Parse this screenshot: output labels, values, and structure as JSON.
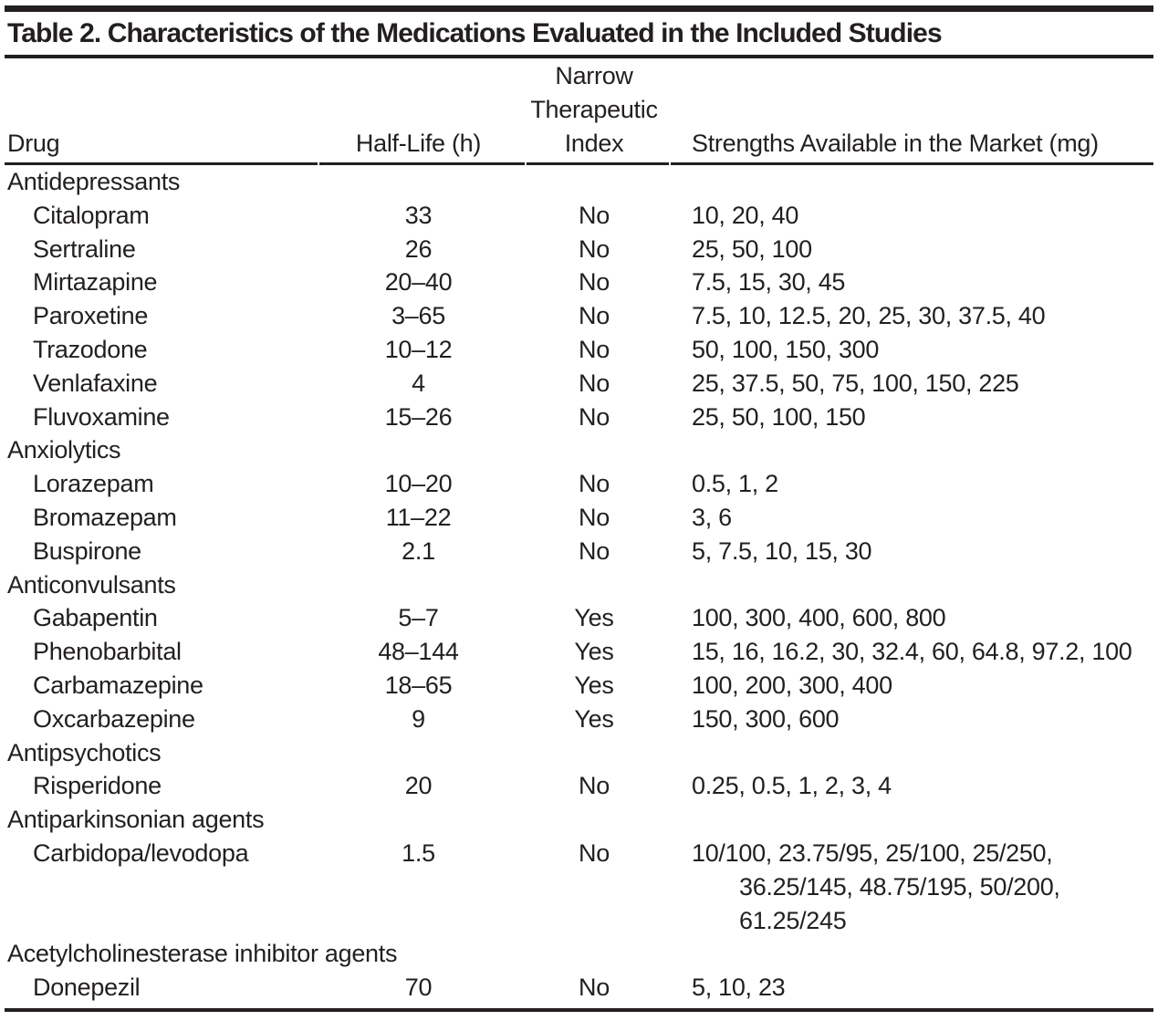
{
  "title": "Table 2. Characteristics of the Medications Evaluated in the Included Studies",
  "colors": {
    "ink": "#231f20",
    "rule": "#231f20"
  },
  "header": {
    "drug": "Drug",
    "half_life": "Half-Life (h)",
    "nti": [
      "Narrow",
      "Therapeutic",
      "Index"
    ],
    "strengths": "Strengths Available in the Market (mg)"
  },
  "rows": [
    {
      "type": "section",
      "label": "Antidepressants"
    },
    {
      "type": "drug",
      "name": "Citalopram",
      "half_life": "33",
      "nti": "No",
      "strengths": [
        "10, 20, 40"
      ]
    },
    {
      "type": "drug",
      "name": "Sertraline",
      "half_life": "26",
      "nti": "No",
      "strengths": [
        "25, 50, 100"
      ]
    },
    {
      "type": "drug",
      "name": "Mirtazapine",
      "half_life": "20–40",
      "nti": "No",
      "strengths": [
        "7.5, 15, 30, 45"
      ]
    },
    {
      "type": "drug",
      "name": "Paroxetine",
      "half_life": "3–65",
      "nti": "No",
      "strengths": [
        "7.5, 10, 12.5, 20, 25, 30, 37.5, 40"
      ]
    },
    {
      "type": "drug",
      "name": "Trazodone",
      "half_life": "10–12",
      "nti": "No",
      "strengths": [
        "50, 100, 150, 300"
      ]
    },
    {
      "type": "drug",
      "name": "Venlafaxine",
      "half_life": "4",
      "nti": "No",
      "strengths": [
        "25, 37.5, 50, 75, 100, 150, 225"
      ]
    },
    {
      "type": "drug",
      "name": "Fluvoxamine",
      "half_life": "15–26",
      "nti": "No",
      "strengths": [
        "25, 50, 100, 150"
      ]
    },
    {
      "type": "section",
      "label": "Anxiolytics"
    },
    {
      "type": "drug",
      "name": "Lorazepam",
      "half_life": "10–20",
      "nti": "No",
      "strengths": [
        "0.5, 1, 2"
      ]
    },
    {
      "type": "drug",
      "name": "Bromazepam",
      "half_life": "11–22",
      "nti": "No",
      "strengths": [
        "3, 6"
      ]
    },
    {
      "type": "drug",
      "name": "Buspirone",
      "half_life": "2.1",
      "nti": "No",
      "strengths": [
        "5, 7.5, 10, 15, 30"
      ]
    },
    {
      "type": "section",
      "label": "Anticonvulsants"
    },
    {
      "type": "drug",
      "name": "Gabapentin",
      "half_life": "5–7",
      "nti": "Yes",
      "strengths": [
        "100, 300, 400, 600, 800"
      ]
    },
    {
      "type": "drug",
      "name": "Phenobarbital",
      "half_life": "48–144",
      "nti": "Yes",
      "strengths": [
        "15, 16, 16.2, 30, 32.4, 60, 64.8, 97.2, 100"
      ]
    },
    {
      "type": "drug",
      "name": "Carbamazepine",
      "half_life": "18–65",
      "nti": "Yes",
      "strengths": [
        "100, 200, 300, 400"
      ]
    },
    {
      "type": "drug",
      "name": "Oxcarbazepine",
      "half_life": "9",
      "nti": "Yes",
      "strengths": [
        "150, 300, 600"
      ]
    },
    {
      "type": "section",
      "label": "Antipsychotics"
    },
    {
      "type": "drug",
      "name": "Risperidone",
      "half_life": "20",
      "nti": "No",
      "strengths": [
        "0.25, 0.5, 1, 2, 3, 4"
      ]
    },
    {
      "type": "section",
      "label": "Antiparkinsonian agents"
    },
    {
      "type": "drug",
      "name": "Carbidopa/levodopa",
      "half_life": "1.5",
      "nti": "No",
      "strengths": [
        "10/100, 23.75/95, 25/100, 25/250,",
        "36.25/145, 48.75/195, 50/200,",
        "61.25/245"
      ]
    },
    {
      "type": "section",
      "label": "Acetylcholinesterase inhibitor agents"
    },
    {
      "type": "drug",
      "name": "Donepezil",
      "half_life": "70",
      "nti": "No",
      "strengths": [
        "5, 10, 23"
      ]
    }
  ]
}
